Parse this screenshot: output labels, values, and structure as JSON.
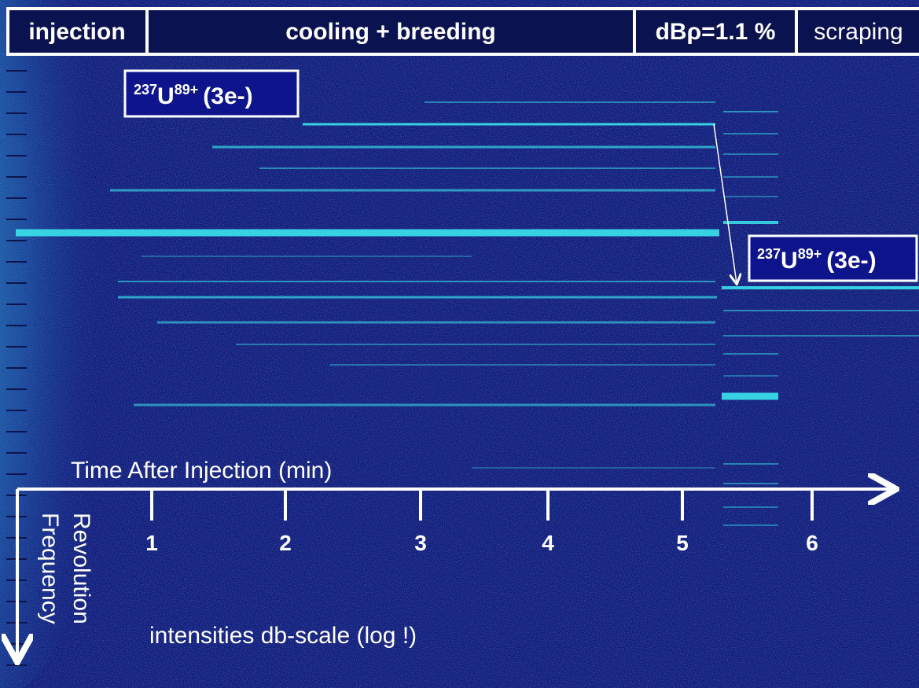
{
  "header": {
    "segments": [
      "injection",
      "cooling + breeding",
      "dBρ=1.1 %",
      "scraping"
    ]
  },
  "labels": [
    {
      "mass": "237",
      "element": "U",
      "charge": "89+",
      "suffix": "(3e-)"
    },
    {
      "mass": "237",
      "element": "U",
      "charge": "89+",
      "suffix": "(3e-)"
    }
  ],
  "time_axis": {
    "title": "Time After Injection (min)",
    "ticks": [
      "1",
      "2",
      "3",
      "4",
      "5",
      "6"
    ]
  },
  "frequency_axis": {
    "title_lines": [
      "Revolution",
      "Frequency"
    ]
  },
  "note": "intensities db-scale (log !)"
}
